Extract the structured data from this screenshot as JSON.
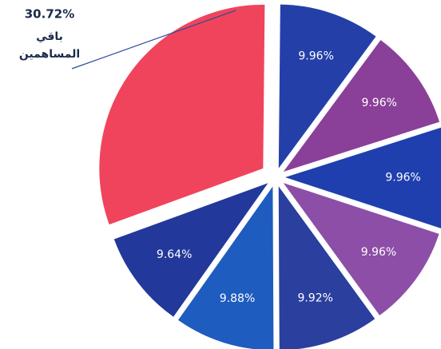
{
  "chart_data": {
    "type": "pie",
    "categories": [
      null,
      null,
      null,
      null,
      null,
      null,
      null,
      "باقي المساهمين"
    ],
    "values": [
      9.96,
      9.96,
      9.96,
      9.96,
      9.92,
      9.88,
      9.64,
      30.72
    ],
    "value_labels": [
      "9.96%",
      "9.96%",
      "9.96%",
      "9.96%",
      "9.92%",
      "9.88%",
      "9.64%",
      "30.72%"
    ],
    "colors": [
      "#2440a8",
      "#8a3f98",
      "#1f3fae",
      "#8c4ea6",
      "#2a3f9e",
      "#1f5cc0",
      "#22389a",
      "#f0445c"
    ]
  }
}
